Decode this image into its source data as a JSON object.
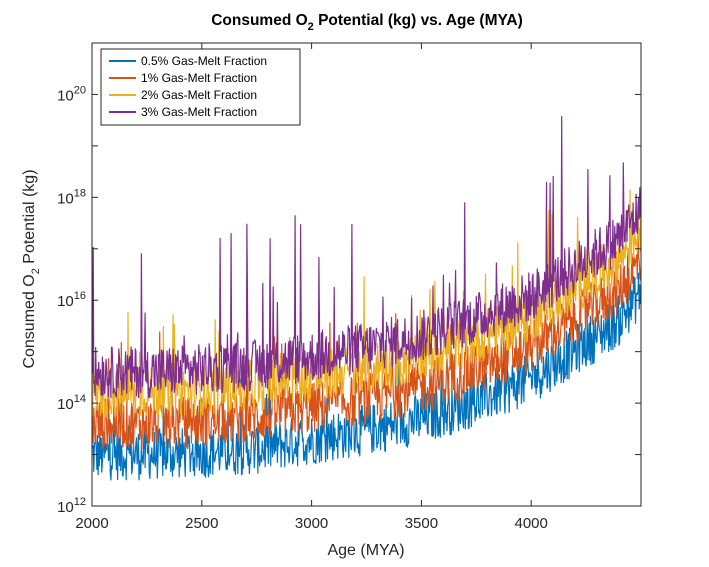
{
  "chart_data": {
    "type": "line",
    "title": "Consumed O2 Potential (kg) vs. Age (MYA)",
    "title_parts": {
      "pre": "Consumed O",
      "sub": "2",
      "post": " Potential (kg) vs. Age (MYA)"
    },
    "xlabel": "Age (MYA)",
    "ylabel": "Consumed O2 Potential (kg)",
    "ylabel_parts": {
      "pre": "Consumed O",
      "sub": "2",
      "post": " Potential (kg)"
    },
    "xlim": [
      2000,
      4500
    ],
    "ylim": [
      1000000000000.0,
      1e+21
    ],
    "yscale": "log",
    "xticks": [
      2000,
      2500,
      3000,
      3500,
      4000
    ],
    "xtick_labels": [
      "2000",
      "2500",
      "3000",
      "3500",
      "4000"
    ],
    "yticks": [
      12,
      14,
      16,
      18,
      20
    ],
    "ytick_labels": [
      {
        "base": "10",
        "exp": "12"
      },
      {
        "base": "10",
        "exp": "14"
      },
      {
        "base": "10",
        "exp": "16"
      },
      {
        "base": "10",
        "exp": "18"
      },
      {
        "base": "10",
        "exp": "20"
      }
    ],
    "grid": false,
    "legend_position": "top-left",
    "series": [
      {
        "name": "0.5% Gas-Melt Fraction",
        "color": "#0072BD",
        "x": [
          2000,
          2250,
          2500,
          2750,
          3000,
          3250,
          3500,
          3750,
          4000,
          4250,
          4400,
          4500
        ],
        "y": [
          10000000000000.0,
          10000000000000.0,
          11000000000000.0,
          13000000000000.0,
          20000000000000.0,
          30000000000000.0,
          50000000000000.0,
          110000000000000.0,
          300000000000000.0,
          1500000000000000.0,
          4000000000000000.0,
          1.5e+16
        ]
      },
      {
        "name": "1% Gas-Melt Fraction",
        "color": "#D95319",
        "x": [
          2000,
          2250,
          2500,
          2750,
          3000,
          3250,
          3500,
          3750,
          4000,
          4250,
          4400,
          4500
        ],
        "y": [
          40000000000000.0,
          40000000000000.0,
          45000000000000.0,
          55000000000000.0,
          80000000000000.0,
          120000000000000.0,
          200000000000000.0,
          450000000000000.0,
          1200000000000000.0,
          6000000000000000.0,
          1.6e+16,
          6e+16
        ]
      },
      {
        "name": "2% Gas-Melt Fraction",
        "color": "#EDB120",
        "x": [
          2000,
          2250,
          2500,
          2750,
          3000,
          3250,
          3500,
          3750,
          4000,
          4250,
          4400,
          4500
        ],
        "y": [
          160000000000000.0,
          160000000000000.0,
          180000000000000.0,
          220000000000000.0,
          320000000000000.0,
          480000000000000.0,
          800000000000000.0,
          1800000000000000.0,
          5000000000000000.0,
          2.4e+16,
          6.5e+16,
          2.4e+17
        ]
      },
      {
        "name": "3% Gas-Melt Fraction",
        "color": "#7E2F8E",
        "x": [
          2000,
          2250,
          2500,
          2750,
          3000,
          3250,
          3500,
          3750,
          4000,
          4250,
          4400,
          4500
        ],
        "y": [
          400000000000000.0,
          400000000000000.0,
          450000000000000.0,
          550000000000000.0,
          800000000000000.0,
          1200000000000000.0,
          2000000000000000.0,
          4500000000000000.0,
          1.2e+16,
          6e+16,
          1.6e+17,
          6e+17
        ]
      }
    ]
  }
}
